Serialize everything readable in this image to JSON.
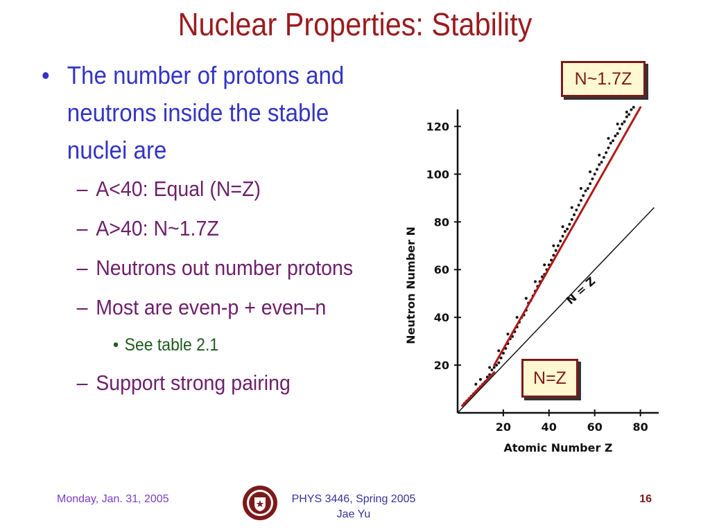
{
  "slide": {
    "title": "Nuclear Properties: Stability",
    "bullet_mark": "•",
    "dash_mark": "–",
    "main_bullet": {
      "lines": [
        "The number of protons and",
        "neutrons inside the stable",
        "nuclei are"
      ]
    },
    "sub_items": [
      "A<40: Equal (N=Z)",
      "A>40: N~1.7Z",
      "Neutrons out number protons",
      "Most are even-p + even–n"
    ],
    "subsub_item": "See table 2.1",
    "last_sub_item": "Support strong pairing"
  },
  "callouts": {
    "n17z": "N~1.7Z",
    "nz": "N=Z"
  },
  "chart_data": {
    "type": "scatter",
    "xlabel": "Atomic Number Z",
    "ylabel": "Neutron Number N",
    "x_ticks": [
      "20",
      "40",
      "60",
      "80"
    ],
    "y_ticks": [
      "20",
      "40",
      "60",
      "80",
      "100",
      "120"
    ],
    "xlim": [
      0,
      88
    ],
    "ylim": [
      0,
      130
    ],
    "line_label": "N = Z",
    "colors": {
      "fit_line": "#b11818",
      "points": "#111111"
    },
    "fit_segments": [
      {
        "x": [
          2,
          16
        ],
        "y": [
          3,
          17
        ]
      },
      {
        "x": [
          16,
          80
        ],
        "y": [
          20,
          128
        ]
      }
    ],
    "nz_line": {
      "x": [
        0,
        86
      ],
      "y": [
        0,
        86
      ]
    },
    "points": [
      [
        3,
        4
      ],
      [
        4,
        5
      ],
      [
        5,
        6
      ],
      [
        6,
        7
      ],
      [
        7,
        8
      ],
      [
        8,
        9
      ],
      [
        9,
        10
      ],
      [
        10,
        11
      ],
      [
        11,
        12
      ],
      [
        12,
        13
      ],
      [
        13,
        15
      ],
      [
        14,
        16
      ],
      [
        15,
        18
      ],
      [
        16,
        19
      ],
      [
        17,
        20
      ],
      [
        18,
        21
      ],
      [
        19,
        23
      ],
      [
        20,
        25
      ],
      [
        21,
        27
      ],
      [
        22,
        29
      ],
      [
        23,
        31
      ],
      [
        24,
        32
      ],
      [
        25,
        34
      ],
      [
        26,
        36
      ],
      [
        27,
        38
      ],
      [
        28,
        40
      ],
      [
        29,
        41
      ],
      [
        30,
        43
      ],
      [
        31,
        46
      ],
      [
        32,
        47
      ],
      [
        33,
        49
      ],
      [
        34,
        51
      ],
      [
        35,
        53
      ],
      [
        36,
        55
      ],
      [
        37,
        57
      ],
      [
        38,
        58
      ],
      [
        39,
        60
      ],
      [
        40,
        62
      ],
      [
        41,
        64
      ],
      [
        42,
        66
      ],
      [
        43,
        68
      ],
      [
        44,
        70
      ],
      [
        45,
        72
      ],
      [
        46,
        74
      ],
      [
        47,
        76
      ],
      [
        48,
        77
      ],
      [
        49,
        79
      ],
      [
        50,
        81
      ],
      [
        51,
        83
      ],
      [
        52,
        85
      ],
      [
        53,
        87
      ],
      [
        54,
        89
      ],
      [
        55,
        91
      ],
      [
        56,
        93
      ],
      [
        57,
        94
      ],
      [
        58,
        96
      ],
      [
        59,
        98
      ],
      [
        60,
        100
      ],
      [
        61,
        102
      ],
      [
        62,
        104
      ],
      [
        63,
        105
      ],
      [
        64,
        107
      ],
      [
        65,
        109
      ],
      [
        66,
        111
      ],
      [
        67,
        113
      ],
      [
        68,
        114
      ],
      [
        69,
        116
      ],
      [
        70,
        117
      ],
      [
        71,
        119
      ],
      [
        72,
        121
      ],
      [
        73,
        122
      ],
      [
        74,
        124
      ],
      [
        75,
        125
      ],
      [
        76,
        127
      ],
      [
        77,
        128
      ],
      [
        8,
        12
      ],
      [
        10,
        14
      ],
      [
        14,
        19
      ],
      [
        18,
        26
      ],
      [
        22,
        33
      ],
      [
        26,
        40
      ],
      [
        30,
        48
      ],
      [
        34,
        55
      ],
      [
        38,
        62
      ],
      [
        42,
        70
      ],
      [
        46,
        78
      ],
      [
        50,
        86
      ],
      [
        54,
        94
      ],
      [
        58,
        101
      ],
      [
        62,
        108
      ],
      [
        66,
        115
      ],
      [
        70,
        121
      ],
      [
        74,
        126
      ]
    ]
  },
  "footer": {
    "date": "Monday, Jan. 31, 2005",
    "course": "PHYS 3446, Spring 2005",
    "author": "Jae Yu",
    "page": "16"
  }
}
